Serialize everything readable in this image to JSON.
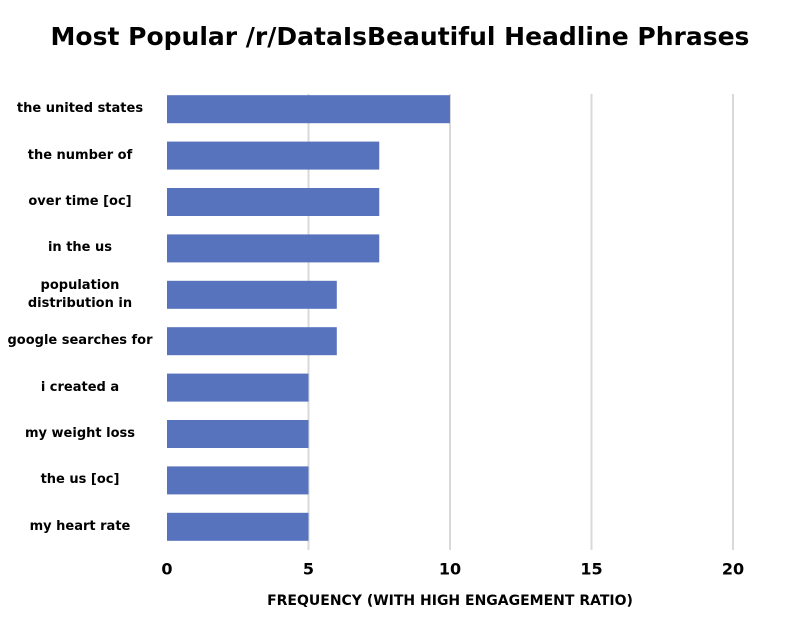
{
  "chart_data": {
    "type": "bar",
    "orientation": "horizontal",
    "title": "Most Popular /r/DataIsBeautiful Headline Phrases",
    "x_label": "FREQUENCY (WITH HIGH ENGAGEMENT RATIO)",
    "categories": [
      "the united states",
      "the number of",
      "over time [oc]",
      "in the us",
      "population\ndistribution in",
      "google searches for",
      "i created a",
      "my weight loss",
      "the us [oc]",
      "my heart rate"
    ],
    "values": [
      10,
      7.5,
      7.5,
      7.5,
      6,
      6,
      5,
      5,
      5,
      5
    ],
    "color": "#5773be",
    "xlim": [
      0,
      20
    ],
    "xticks": [
      0,
      5,
      10,
      15,
      20
    ],
    "grid": true
  }
}
